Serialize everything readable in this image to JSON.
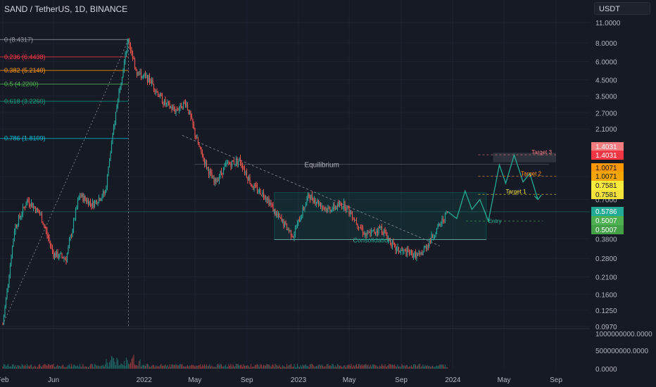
{
  "header": {
    "symbol_title": "SAND / TetherUS, 1D, BINANCE",
    "currency": "USDT"
  },
  "chart_data": {
    "type": "candlestick",
    "title": "SAND / TetherUS, 1D, BINANCE",
    "y_scale": "log",
    "ylim": [
      0.095,
      11.5
    ],
    "y_ticks": [
      "11.0000",
      "8.0000",
      "6.0000",
      "4.5000",
      "3.5000",
      "2.7000",
      "2.1000",
      "1.0000",
      "0.7000",
      "0.3800",
      "0.2800",
      "0.2100",
      "0.1600",
      "0.1250",
      "0.0970"
    ],
    "x_ticks": [
      "Feb",
      "Jun",
      "2022",
      "May",
      "Sep",
      "2023",
      "May",
      "Sep",
      "2024",
      "May",
      "Sep"
    ],
    "volume_ticks": [
      "1000000000.0000",
      "500000000.0000",
      "0.0000"
    ],
    "price_path": [
      [
        "2021-02-01",
        0.1
      ],
      [
        "2021-03-01",
        0.45
      ],
      [
        "2021-04-01",
        0.7
      ],
      [
        "2021-05-01",
        0.55
      ],
      [
        "2021-06-01",
        0.3
      ],
      [
        "2021-07-01",
        0.28
      ],
      [
        "2021-08-01",
        0.75
      ],
      [
        "2021-09-01",
        0.65
      ],
      [
        "2021-10-01",
        0.78
      ],
      [
        "2021-11-01",
        3.6
      ],
      [
        "2021-11-25",
        8.4
      ],
      [
        "2021-12-15",
        5.0
      ],
      [
        "2022-01-15",
        4.5
      ],
      [
        "2022-02-15",
        3.2
      ],
      [
        "2022-03-15",
        2.8
      ],
      [
        "2022-04-10",
        3.2
      ],
      [
        "2022-05-10",
        1.6
      ],
      [
        "2022-06-15",
        0.9
      ],
      [
        "2022-07-15",
        1.2
      ],
      [
        "2022-08-15",
        1.3
      ],
      [
        "2022-09-15",
        0.85
      ],
      [
        "2022-10-15",
        0.75
      ],
      [
        "2022-11-10",
        0.55
      ],
      [
        "2022-12-20",
        0.4
      ],
      [
        "2023-01-25",
        0.75
      ],
      [
        "2023-03-10",
        0.6
      ],
      [
        "2023-04-20",
        0.65
      ],
      [
        "2023-06-10",
        0.4
      ],
      [
        "2023-07-15",
        0.45
      ],
      [
        "2023-08-20",
        0.32
      ],
      [
        "2023-10-15",
        0.29
      ],
      [
        "2023-11-20",
        0.42
      ],
      [
        "2023-12-20",
        0.58
      ]
    ],
    "projection_path": [
      [
        "2023-12-20",
        0.58
      ],
      [
        "2024-01-10",
        0.52
      ],
      [
        "2024-01-30",
        0.8
      ],
      [
        "2024-02-15",
        0.6
      ],
      [
        "2024-03-05",
        0.7
      ],
      [
        "2024-03-25",
        0.5
      ],
      [
        "2024-04-20",
        1.2
      ],
      [
        "2024-05-05",
        0.9
      ],
      [
        "2024-05-25",
        1.4
      ],
      [
        "2024-06-15",
        0.92
      ],
      [
        "2024-07-01",
        1.05
      ],
      [
        "2024-07-20",
        0.7
      ]
    ],
    "fibonacci": [
      {
        "label": "0 (8.4317)",
        "price": 8.4317,
        "color": "#9598a1"
      },
      {
        "label": "0.236 (6.4438)",
        "price": 6.4438,
        "color": "#f23645"
      },
      {
        "label": "0.382 (5.2140)",
        "price": 5.214,
        "color": "#ff9800"
      },
      {
        "label": "0.5 (4.2200)",
        "price": 4.22,
        "color": "#4caf50"
      },
      {
        "label": "0.618 (3.2260)",
        "price": 3.226,
        "color": "#089981"
      },
      {
        "label": "0.786 (1.8109)",
        "price": 1.8109,
        "color": "#00bcd4"
      }
    ],
    "annotations": {
      "equilibrium": "Equilibrium",
      "consolidation": "Consolidation",
      "entry": "Entry",
      "target1": "Target 1",
      "target2": "Target 2",
      "target3": "Target 3"
    },
    "price_badges": [
      {
        "text": "1.4031",
        "price": 1.4031,
        "bg": "#f77c80",
        "fg": "#ffffff"
      },
      {
        "text": "1.4031",
        "price": 1.4031,
        "bg": "#f23645",
        "fg": "#ffffff"
      },
      {
        "text": "1.0071",
        "price": 1.0071,
        "bg": "#ff9800",
        "fg": "#131722"
      },
      {
        "text": "1.0071",
        "price": 1.0071,
        "bg": "#f7a600",
        "fg": "#131722"
      },
      {
        "text": "0.7581",
        "price": 0.7581,
        "bg": "#ffeb3b",
        "fg": "#131722"
      },
      {
        "text": "0.7581",
        "price": 0.7581,
        "bg": "#f6e33a",
        "fg": "#131722"
      },
      {
        "text": "0.5786",
        "price": 0.5786,
        "bg": "#22ab94",
        "fg": "#ffffff"
      },
      {
        "text": "0.5007",
        "price": 0.5007,
        "bg": "#4caf50",
        "fg": "#ffffff"
      },
      {
        "text": "0.5007",
        "price": 0.5007,
        "bg": "#43a047",
        "fg": "#ffffff"
      }
    ],
    "colors": {
      "up": "#26a69a",
      "down": "#ef5350",
      "background": "#161a25",
      "grid": "#1f2330"
    }
  }
}
